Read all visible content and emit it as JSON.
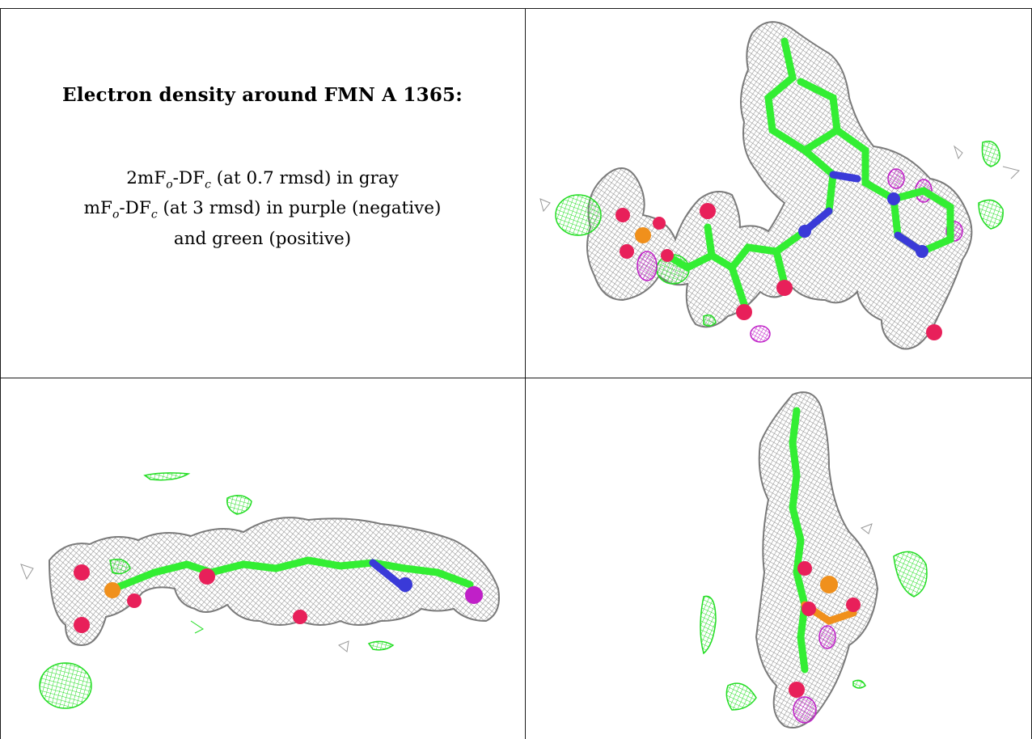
{
  "title": "Electron density around FMN A 1365:",
  "legend": {
    "line1": {
      "prefix": "2mF",
      "sub1": "o",
      "mid": "-DF",
      "sub2": "c",
      "suffix": " (at 0.7 rmsd) in gray"
    },
    "line2": {
      "prefix": "mF",
      "sub1": "o",
      "mid": "-DF",
      "sub2": "c",
      "suffix": " (at 3 rmsd) in purple (negative)"
    },
    "line3": "and green (positive)"
  },
  "colors": {
    "mesh_2fofc": "#9a9a9a",
    "positive_density": "#2ee82e",
    "negative_density": "#c020c8",
    "carbon": "#33ff33",
    "oxygen": "#e8205a",
    "nitrogen": "#3a3ad8",
    "phosphorus": "#f0901c"
  },
  "panels": [
    {
      "view": "top-right",
      "content": "FMN molecule face-on view with density mesh"
    },
    {
      "view": "bottom-left",
      "content": "FMN molecule edge-on view with density mesh"
    },
    {
      "view": "bottom-right",
      "content": "FMN molecule end-on view with density mesh"
    }
  ]
}
